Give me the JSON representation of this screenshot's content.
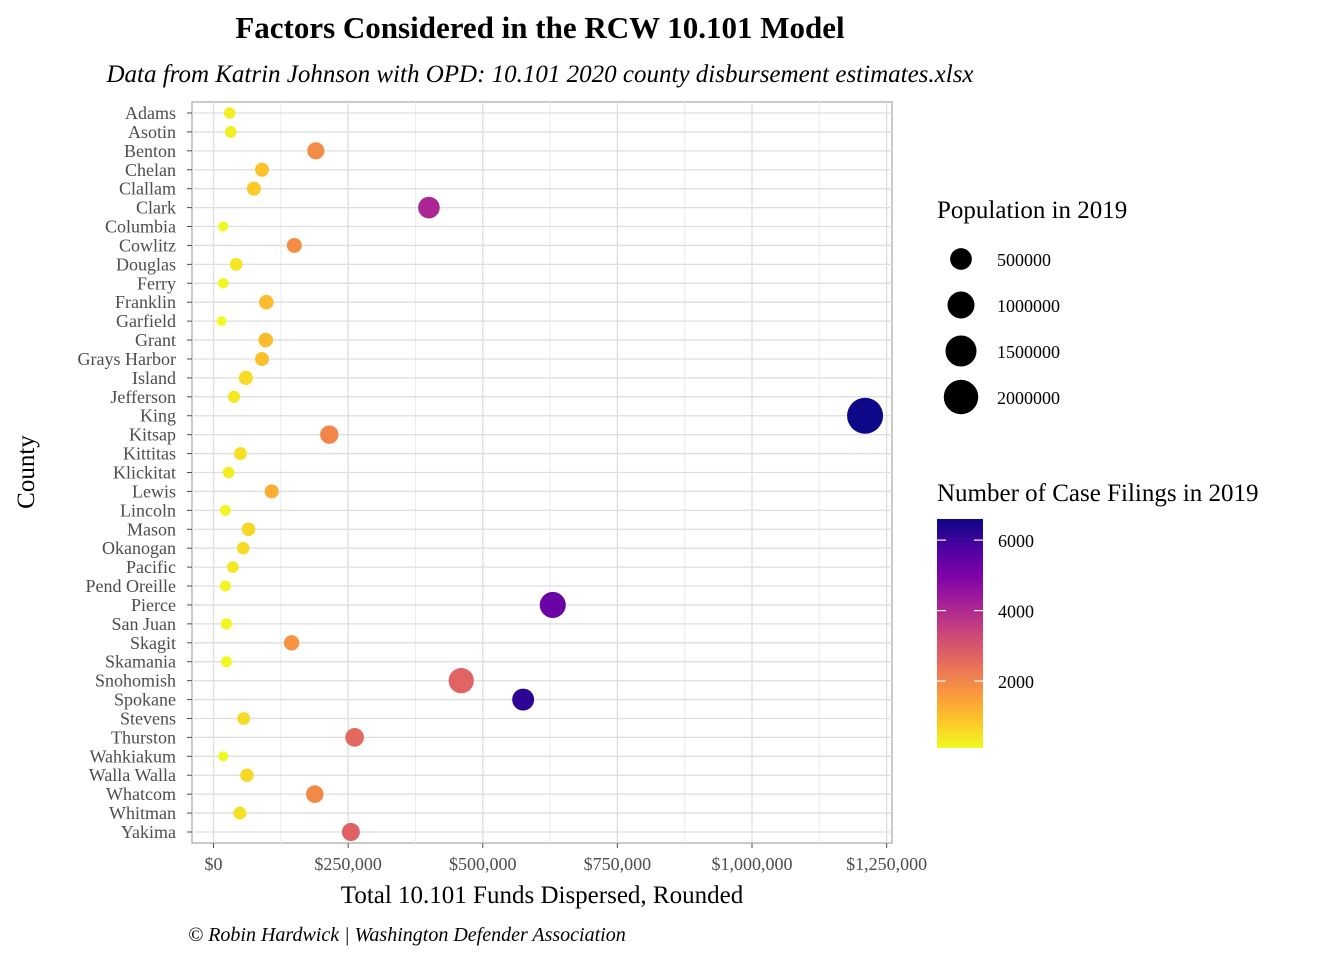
{
  "chart_data": {
    "type": "scatter",
    "title": "Factors Considered in the RCW 10.101 Model",
    "subtitle": "Data from Katrin Johnson with OPD: 10.101 2020 county disbursement estimates.xlsx",
    "caption": "© Robin Hardwick | Washington Defender Association",
    "xlabel": "Total 10.101 Funds Dispersed, Rounded",
    "ylabel": "County",
    "xlim": [
      -40000,
      1260000
    ],
    "x_ticks": [
      0,
      250000,
      500000,
      750000,
      1000000,
      1250000
    ],
    "x_tick_labels": [
      "$0",
      "$250,000",
      "$500,000",
      "$750,000",
      "$1,000,000",
      "$1,250,000"
    ],
    "grid": true,
    "size_legend": {
      "title": "Population in 2019",
      "breaks": [
        500000,
        1000000,
        1500000,
        2000000
      ],
      "labels": [
        "500000",
        "1000000",
        "1500000",
        "2000000"
      ],
      "position": "right"
    },
    "color_legend": {
      "title": "Number of Case Filings in 2019",
      "breaks": [
        2000,
        4000,
        6000
      ],
      "labels": [
        "2000",
        "4000",
        "6000"
      ],
      "range": [
        100,
        6600
      ],
      "palette": [
        "#f0f921",
        "#fdc328",
        "#f89441",
        "#e56b5d",
        "#cb4679",
        "#a82296",
        "#7e03a8",
        "#4c02a1",
        "#0d0887"
      ],
      "position": "right"
    },
    "points": [
      {
        "county": "Adams",
        "funds": 30000,
        "population": 20000,
        "filings": 250
      },
      {
        "county": "Asotin",
        "funds": 32000,
        "population": 23000,
        "filings": 280
      },
      {
        "county": "Benton",
        "funds": 190000,
        "population": 205000,
        "filings": 1900
      },
      {
        "county": "Chelan",
        "funds": 90000,
        "population": 78000,
        "filings": 950
      },
      {
        "county": "Clallam",
        "funds": 75000,
        "population": 77000,
        "filings": 800
      },
      {
        "county": "Clark",
        "funds": 400000,
        "population": 490000,
        "filings": 4100
      },
      {
        "county": "Columbia",
        "funds": 18000,
        "population": 4000,
        "filings": 120
      },
      {
        "county": "Cowlitz",
        "funds": 150000,
        "population": 110000,
        "filings": 1850
      },
      {
        "county": "Douglas",
        "funds": 42000,
        "population": 43000,
        "filings": 400
      },
      {
        "county": "Ferry",
        "funds": 18000,
        "population": 7600,
        "filings": 140
      },
      {
        "county": "Franklin",
        "funds": 98000,
        "population": 95000,
        "filings": 1050
      },
      {
        "county": "Garfield",
        "funds": 15000,
        "population": 2200,
        "filings": 100
      },
      {
        "county": "Grant",
        "funds": 97000,
        "population": 98000,
        "filings": 1050
      },
      {
        "county": "Grays Harbor",
        "funds": 90000,
        "population": 75000,
        "filings": 1000
      },
      {
        "county": "Island",
        "funds": 60000,
        "population": 85000,
        "filings": 550
      },
      {
        "county": "Jefferson",
        "funds": 38000,
        "population": 32000,
        "filings": 350
      },
      {
        "county": "King",
        "funds": 1210000,
        "population": 2250000,
        "filings": 6600
      },
      {
        "county": "Kitsap",
        "funds": 215000,
        "population": 270000,
        "filings": 2000
      },
      {
        "county": "Kittitas",
        "funds": 50000,
        "population": 47000,
        "filings": 480
      },
      {
        "county": "Klickitat",
        "funds": 28000,
        "population": 22000,
        "filings": 260
      },
      {
        "county": "Lewis",
        "funds": 108000,
        "population": 80000,
        "filings": 1300
      },
      {
        "county": "Lincoln",
        "funds": 22000,
        "population": 11000,
        "filings": 160
      },
      {
        "county": "Mason",
        "funds": 65000,
        "population": 66000,
        "filings": 620
      },
      {
        "county": "Okanogan",
        "funds": 55000,
        "population": 42000,
        "filings": 560
      },
      {
        "county": "Pacific",
        "funds": 36000,
        "population": 22000,
        "filings": 350
      },
      {
        "county": "Pend Oreille",
        "funds": 22000,
        "population": 13000,
        "filings": 190
      },
      {
        "county": "Pierce",
        "funds": 630000,
        "population": 900000,
        "filings": 5300
      },
      {
        "county": "San Juan",
        "funds": 24000,
        "population": 17000,
        "filings": 150
      },
      {
        "county": "Skagit",
        "funds": 145000,
        "population": 128000,
        "filings": 1750
      },
      {
        "county": "Skamania",
        "funds": 24000,
        "population": 12000,
        "filings": 150
      },
      {
        "county": "Snohomish",
        "funds": 460000,
        "population": 820000,
        "filings": 2700
      },
      {
        "county": "Spokane",
        "funds": 575000,
        "population": 520000,
        "filings": 6200
      },
      {
        "county": "Stevens",
        "funds": 56000,
        "population": 45000,
        "filings": 560
      },
      {
        "county": "Thurston",
        "funds": 262000,
        "population": 290000,
        "filings": 2600
      },
      {
        "county": "Wahkiakum",
        "funds": 18000,
        "population": 4400,
        "filings": 110
      },
      {
        "county": "Walla Walla",
        "funds": 62000,
        "population": 61000,
        "filings": 620
      },
      {
        "county": "Whatcom",
        "funds": 188000,
        "population": 228000,
        "filings": 1950
      },
      {
        "county": "Whitman",
        "funds": 49000,
        "population": 50000,
        "filings": 480
      },
      {
        "county": "Yakima",
        "funds": 255000,
        "population": 250000,
        "filings": 2750
      }
    ]
  }
}
